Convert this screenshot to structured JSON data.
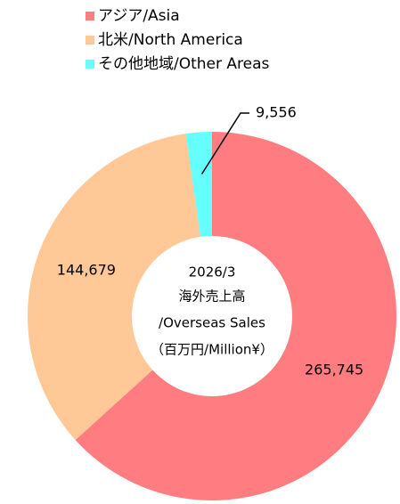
{
  "chart_data": {
    "type": "donut",
    "categories": [
      "アジア/Asia",
      "北米/North America",
      "その他地域/Other Areas"
    ],
    "values": [
      265745,
      144679,
      9556
    ],
    "value_labels": [
      "265,745",
      "144,679",
      "9,556"
    ],
    "colors": [
      "#ff7c80",
      "#ffc896",
      "#66ffff"
    ],
    "center_text": [
      "2026/3",
      "海外売上高",
      "/Overseas Sales",
      "（百万円/Million¥）"
    ]
  }
}
